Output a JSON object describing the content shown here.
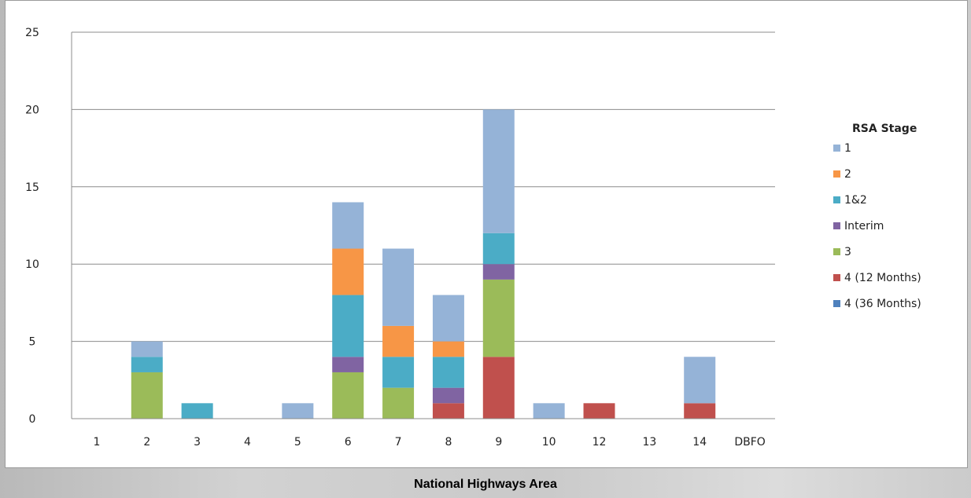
{
  "chart_data": {
    "type": "bar",
    "stacked": true,
    "categories": [
      "1",
      "2",
      "3",
      "4",
      "5",
      "6",
      "7",
      "8",
      "9",
      "10",
      "12",
      "13",
      "14",
      "DBFO"
    ],
    "series": [
      {
        "name": "4 (36 Months)",
        "color": "#4f81bd",
        "values": [
          0,
          0,
          0,
          0,
          0,
          0,
          0,
          0,
          0,
          0,
          0,
          0,
          0,
          0
        ]
      },
      {
        "name": "4 (12 Months)",
        "color": "#c0504d",
        "values": [
          0,
          0,
          0,
          0,
          0,
          0,
          0,
          1,
          4,
          0,
          1,
          0,
          1,
          0
        ]
      },
      {
        "name": "3",
        "color": "#9bbb59",
        "values": [
          0,
          3,
          0,
          0,
          0,
          3,
          2,
          0,
          5,
          0,
          0,
          0,
          0,
          0
        ]
      },
      {
        "name": "Interim",
        "color": "#8064a2",
        "values": [
          0,
          0,
          0,
          0,
          0,
          1,
          0,
          1,
          1,
          0,
          0,
          0,
          0,
          0
        ]
      },
      {
        "name": "1&2",
        "color": "#4bacc6",
        "values": [
          0,
          1,
          1,
          0,
          0,
          4,
          2,
          2,
          2,
          0,
          0,
          0,
          0,
          0
        ]
      },
      {
        "name": "2",
        "color": "#f79646",
        "values": [
          0,
          0,
          0,
          0,
          0,
          3,
          2,
          1,
          0,
          0,
          0,
          0,
          0,
          0
        ]
      },
      {
        "name": "1",
        "color": "#95b3d7",
        "values": [
          0,
          1,
          0,
          0,
          1,
          3,
          5,
          3,
          8,
          1,
          0,
          0,
          3,
          0
        ]
      }
    ],
    "legend_title": "RSA Stage",
    "legend_order": [
      "1",
      "2",
      "1&2",
      "Interim",
      "3",
      "4 (12 Months)",
      "4 (36 Months)"
    ],
    "legend_position": "right",
    "xlabel": "National Highways Area",
    "ylabel": "",
    "ylim": [
      0,
      25
    ],
    "yticks": [
      0,
      5,
      10,
      15,
      20,
      25
    ],
    "grid": true
  }
}
